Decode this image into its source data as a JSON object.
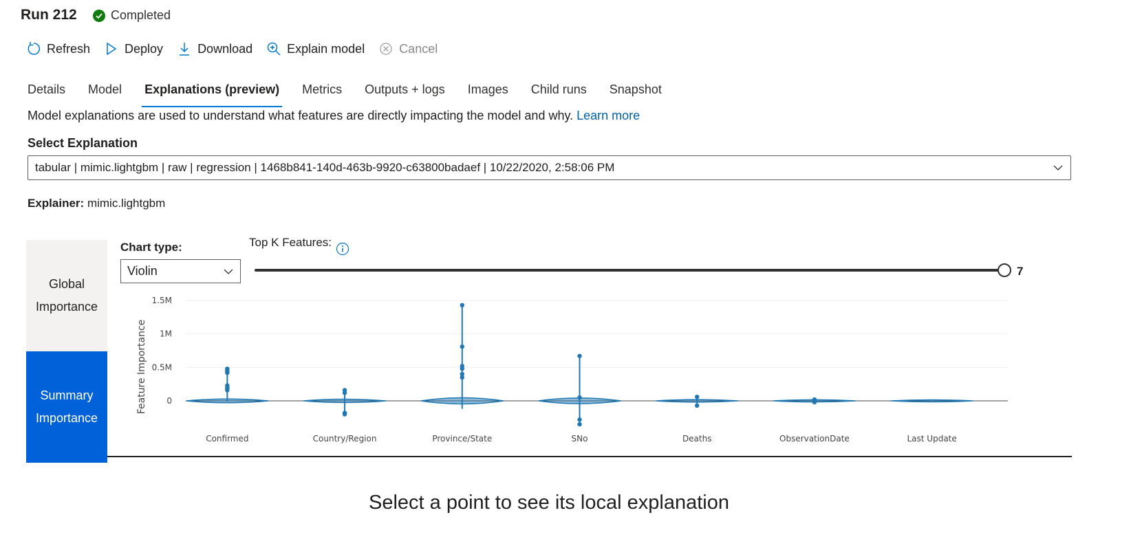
{
  "header": {
    "title": "Run 212",
    "status": "Completed"
  },
  "toolbar": {
    "refresh": "Refresh",
    "deploy": "Deploy",
    "download": "Download",
    "explain": "Explain model",
    "cancel": "Cancel"
  },
  "tabs": [
    "Details",
    "Model",
    "Explanations (preview)",
    "Metrics",
    "Outputs + logs",
    "Images",
    "Child runs",
    "Snapshot"
  ],
  "active_tab": "Explanations (preview)",
  "description": {
    "text": "Model explanations are used to understand what features are directly impacting the model and why.",
    "link": "Learn more"
  },
  "select_explanation": {
    "label": "Select Explanation",
    "value": "tabular | mimic.lightgbm | raw | regression | 1468b841-140d-463b-9920-c63800badaef | 10/22/2020, 2:58:06 PM"
  },
  "explainer": {
    "label": "Explainer:",
    "value": "mimic.lightgbm"
  },
  "side_tabs": {
    "global": [
      "Global",
      "Importance"
    ],
    "summary": [
      "Summary",
      "Importance"
    ],
    "selected": "summary"
  },
  "chart_controls": {
    "chart_type_label": "Chart type:",
    "chart_type_value": "Violin",
    "topk_label": "Top K Features:",
    "topk_value": "7",
    "topk_fraction": 1.0
  },
  "chart_data": {
    "type": "violin",
    "ylabel": "Feature Importance",
    "ylim": [
      -400000,
      1500000
    ],
    "yticks": [
      {
        "v": 0,
        "label": "0"
      },
      {
        "v": 500000,
        "label": "0.5M"
      },
      {
        "v": 1000000,
        "label": "1M"
      },
      {
        "v": 1500000,
        "label": "1.5M"
      }
    ],
    "grid": true,
    "color": "#1f77b4",
    "categories": [
      "Confirmed",
      "Country/Region",
      "Province/State",
      "SNo",
      "Deaths",
      "ObservationDate",
      "Last Update"
    ],
    "series": [
      {
        "name": "Confirmed",
        "min": -10000,
        "max": 490000,
        "outliers": [
          480000,
          460000,
          440000,
          420000,
          230000,
          200000,
          180000,
          160000
        ]
      },
      {
        "name": "Country/Region",
        "min": -210000,
        "max": 170000,
        "outliers": [
          160000,
          120000,
          -180000,
          -200000
        ]
      },
      {
        "name": "Province/State",
        "min": -120000,
        "max": 1430000,
        "outliers": [
          1430000,
          810000,
          520000,
          480000,
          400000,
          350000
        ]
      },
      {
        "name": "SNo",
        "min": -360000,
        "max": 670000,
        "outliers": [
          670000,
          50000,
          -280000,
          -350000
        ]
      },
      {
        "name": "Deaths",
        "min": -80000,
        "max": 70000,
        "outliers": [
          60000,
          -70000
        ]
      },
      {
        "name": "ObservationDate",
        "min": -30000,
        "max": 30000,
        "outliers": [
          20000,
          -20000
        ]
      },
      {
        "name": "Last Update",
        "min": -5000,
        "max": 5000,
        "outliers": []
      }
    ]
  },
  "local_message": "Select a point to see its local explanation"
}
